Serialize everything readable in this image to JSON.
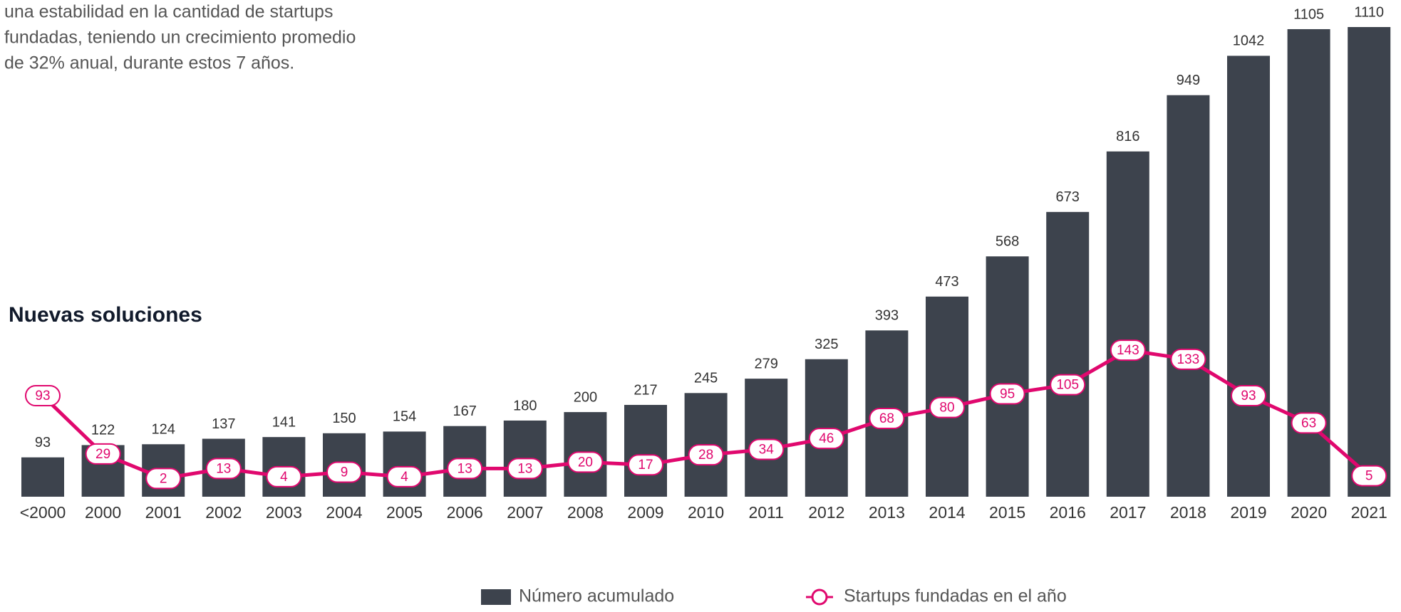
{
  "intro": [
    "una estabilidad en la cantidad de startups",
    "fundadas, teniendo un crecimiento promedio",
    "de 32% anual, durante estos 7 años."
  ],
  "heading": "Nuevas soluciones",
  "chart_data": {
    "type": "bar",
    "categories": [
      "<2000",
      "2000",
      "2001",
      "2002",
      "2003",
      "2004",
      "2005",
      "2006",
      "2007",
      "2008",
      "2009",
      "2010",
      "2011",
      "2012",
      "2013",
      "2014",
      "2015",
      "2016",
      "2017",
      "2018",
      "2019",
      "2020",
      "2021"
    ],
    "series": [
      {
        "name": "Número acumulado",
        "color": "#3d434d",
        "values": [
          93,
          122,
          124,
          137,
          141,
          150,
          154,
          167,
          180,
          200,
          217,
          245,
          279,
          325,
          393,
          473,
          568,
          673,
          816,
          949,
          1042,
          1105,
          1110
        ]
      },
      {
        "name": "Startups fundadas en el año",
        "type": "line",
        "axis": "y2",
        "color": "#e0086e",
        "values": [
          93,
          29,
          2,
          13,
          4,
          9,
          4,
          13,
          13,
          20,
          17,
          28,
          34,
          46,
          68,
          80,
          95,
          105,
          143,
          133,
          93,
          63,
          5
        ]
      }
    ],
    "ylim": [
      0,
      1110
    ],
    "y2lim": [
      -18,
      498
    ],
    "legend": "bottom"
  }
}
